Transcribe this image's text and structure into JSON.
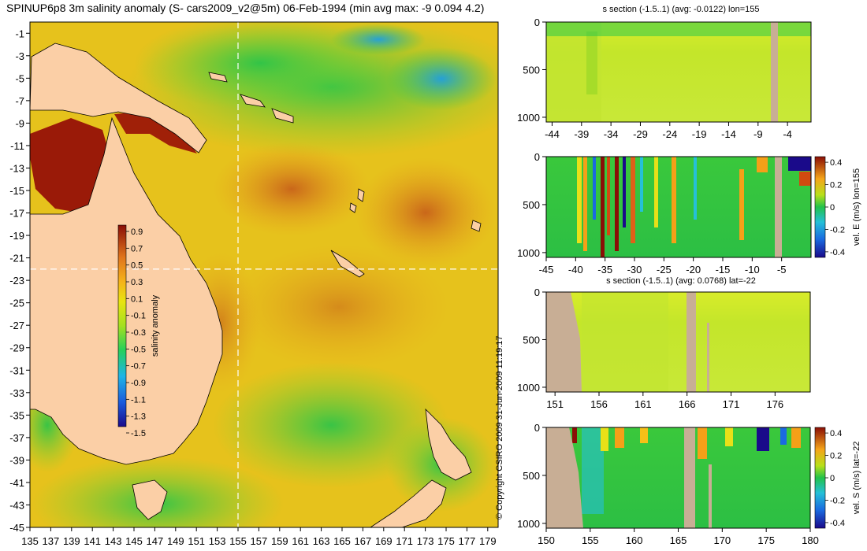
{
  "title": "SPINUP6p8 3m salinity anomaly (S- cars2009_v2@5m) 06-Feb-1994 (min avg max: -9 0.094 4.2)",
  "copyright": "© Copyright CSIRO 2009    31-Jun-2009 11:19:17",
  "colors": {
    "land": "#fbcfa6",
    "section_land": "#c8ae95",
    "crosshair": "#ffffff"
  },
  "chart_data": [
    {
      "type": "heatmap",
      "name": "map",
      "title": "SPINUP6p8 3m salinity anomaly (S- cars2009_v2@5m) 06-Feb-1994 (min avg max: -9 0.094 4.2)",
      "xlim": [
        135,
        180
      ],
      "ylim": [
        -45,
        0
      ],
      "xticks": [
        135,
        137,
        139,
        141,
        143,
        145,
        147,
        149,
        151,
        153,
        155,
        157,
        159,
        161,
        163,
        165,
        167,
        169,
        171,
        173,
        175,
        177,
        179
      ],
      "yticks": [
        -1,
        -3,
        -5,
        -7,
        -9,
        -11,
        -13,
        -15,
        -17,
        -19,
        -21,
        -23,
        -25,
        -27,
        -29,
        -31,
        -33,
        -35,
        -37,
        -39,
        -41,
        -43,
        -45
      ],
      "crosshair": {
        "lon": 155,
        "lat": -22
      },
      "colorbar": {
        "label": "salinity anomaly",
        "ticks": [
          "0.9",
          "0.7",
          "0.5",
          "0.3",
          "0.1",
          "-0.1",
          "-0.3",
          "-0.5",
          "-0.7",
          "-0.9",
          "-1.1",
          "-1.3",
          "-1.5"
        ],
        "range": [
          -1.5,
          0.9
        ]
      }
    },
    {
      "type": "heatmap",
      "name": "s-section-lon",
      "title": "s section (-1.5..1) (avg: -0.0122) lon=155",
      "xlim": [
        -45,
        0
      ],
      "ylim": [
        0,
        1050
      ],
      "xticks": [
        -44,
        -39,
        -34,
        -29,
        -24,
        -19,
        -14,
        -9,
        -4
      ],
      "yticks": [
        0,
        500,
        1000
      ]
    },
    {
      "type": "heatmap",
      "name": "vel-e-section-lon",
      "title": "",
      "xlim": [
        -45,
        0
      ],
      "ylim": [
        0,
        1050
      ],
      "xticks": [
        -45,
        -40,
        -35,
        -30,
        -25,
        -20,
        -15,
        -10,
        -5
      ],
      "yticks": [
        0,
        500,
        1000
      ],
      "colorbar": {
        "label": "vel. E (m/s) lon=155",
        "ticks": [
          "0.4",
          "0.2",
          "0",
          "-0.2",
          "-0.4"
        ],
        "range": [
          -0.45,
          0.45
        ]
      }
    },
    {
      "type": "heatmap",
      "name": "s-section-lat",
      "title": "s section (-1.5..1) (avg: 0.0768) lat=-22",
      "xlim": [
        150,
        180
      ],
      "ylim": [
        0,
        1050
      ],
      "xticks": [
        151,
        156,
        161,
        166,
        171,
        176
      ],
      "yticks": [
        0,
        500,
        1000
      ]
    },
    {
      "type": "heatmap",
      "name": "vel-s-section-lat",
      "title": "",
      "xlim": [
        150,
        180
      ],
      "ylim": [
        0,
        1050
      ],
      "xticks": [
        150,
        155,
        160,
        165,
        170,
        175,
        180
      ],
      "yticks": [
        0,
        500,
        1000
      ],
      "colorbar": {
        "label": "vel. S (m/s) lat=-22",
        "ticks": [
          "0.4",
          "0.2",
          "0",
          "-0.2",
          "-0.4"
        ],
        "range": [
          -0.45,
          0.45
        ]
      }
    }
  ]
}
